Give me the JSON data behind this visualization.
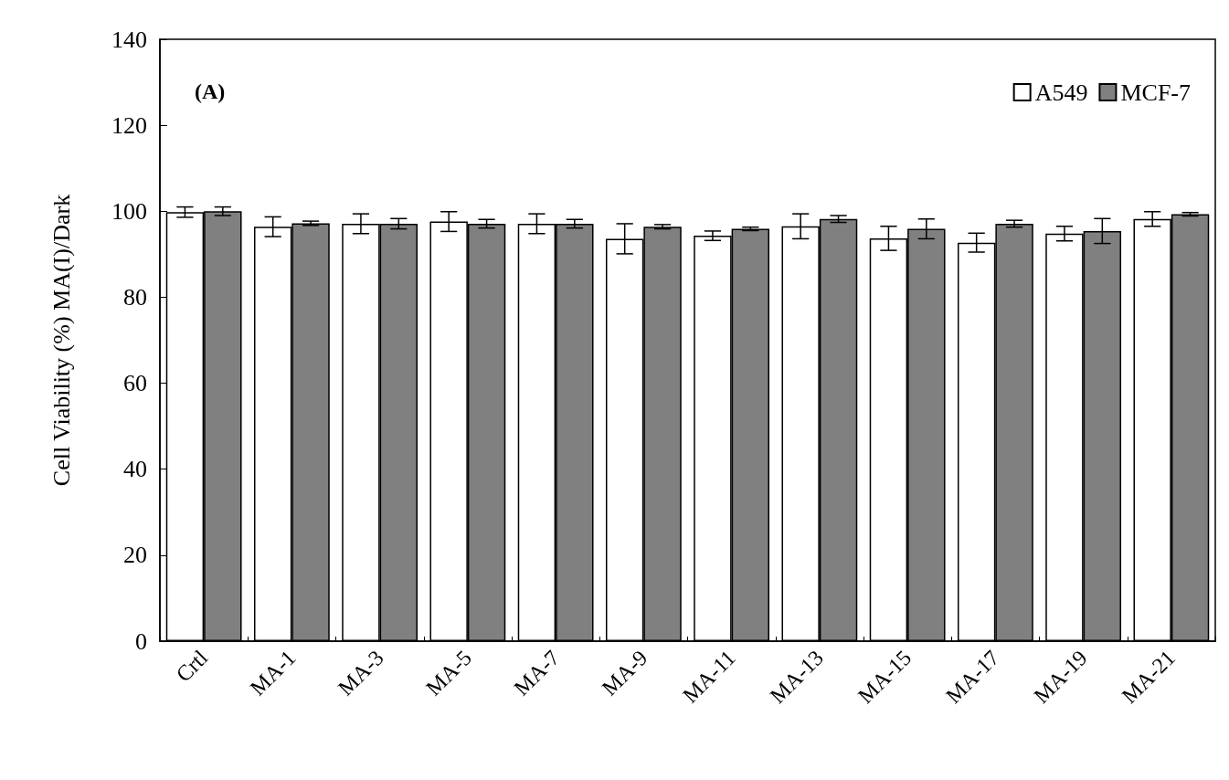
{
  "chart_data": {
    "type": "bar",
    "ylabel": "Cell Viability (%) MA(I)/Dark",
    "annotations": [
      "(A)"
    ],
    "categories": [
      "Crtl",
      "MA-1",
      "MA-3",
      "MA-5",
      "MA-7",
      "MA-9",
      "MA-11",
      "MA-13",
      "MA-15",
      "MA-17",
      "MA-19",
      "MA-21"
    ],
    "series": [
      {
        "name": "A549",
        "color": "#ffffff",
        "values": [
          99.8,
          96.4,
          97.1,
          97.6,
          97.1,
          93.6,
          94.3,
          96.5,
          93.7,
          92.7,
          94.8,
          98.2
        ],
        "errors": [
          1.2,
          2.3,
          2.3,
          2.3,
          2.3,
          3.5,
          1.1,
          2.9,
          2.8,
          2.2,
          1.7,
          1.7
        ]
      },
      {
        "name": "MCF-7",
        "color": "#808080",
        "values": [
          100,
          97.2,
          97.1,
          97.1,
          97.1,
          96.4,
          95.9,
          98.2,
          95.9,
          97.1,
          95.4,
          99.3
        ],
        "errors": [
          1,
          0.5,
          1.2,
          1,
          1,
          0.5,
          0.4,
          0.8,
          2.3,
          0.8,
          2.9,
          0.4
        ]
      }
    ],
    "ylim": [
      0,
      140
    ],
    "yticks": [
      0,
      20,
      40,
      60,
      80,
      100,
      120,
      140
    ],
    "grid": false,
    "legend": "top right"
  }
}
